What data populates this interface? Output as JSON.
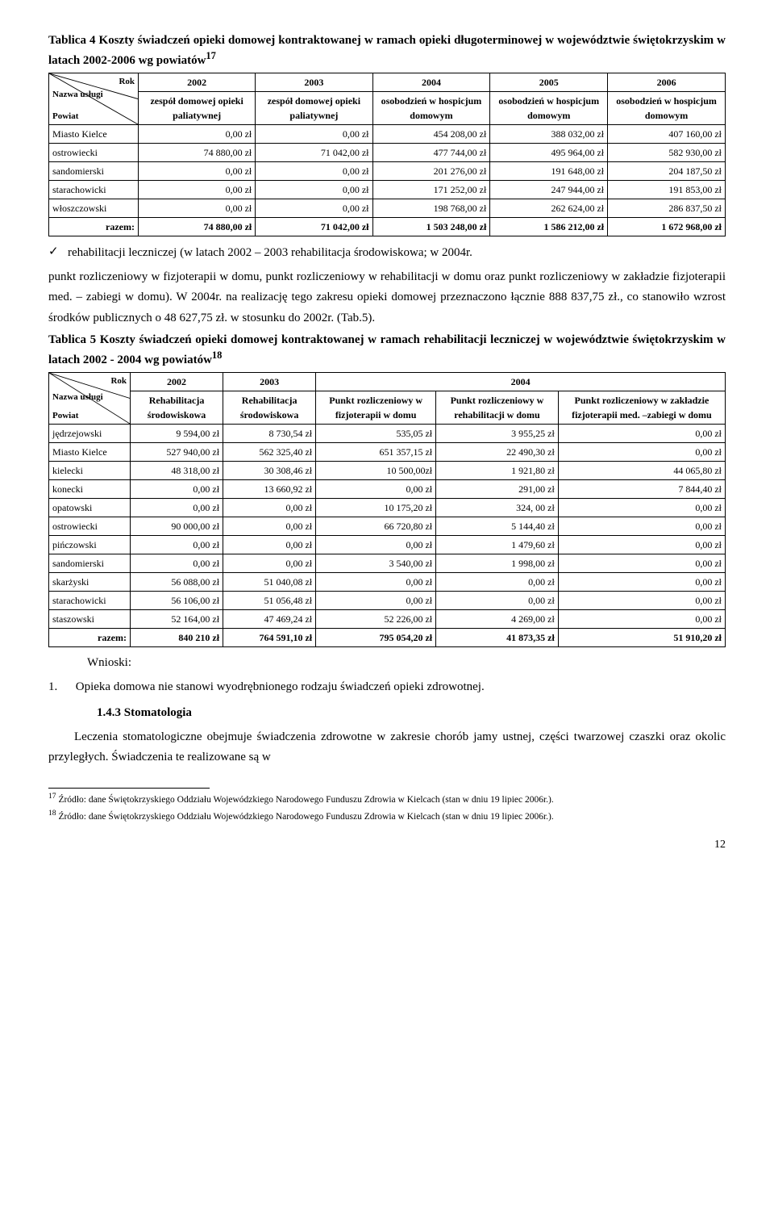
{
  "table4": {
    "title": "Tablica 4 Koszty świadczeń opieki domowej kontraktowanej w ramach opieki długoterminowej w województwie świętokrzyskim w latach 2002-2006 wg powiatów",
    "sup": "17",
    "diag": {
      "tr": "Rok",
      "mid": "Nazwa usługi",
      "bl": "Powiat"
    },
    "years": [
      "2002",
      "2003",
      "2004",
      "2005",
      "2006"
    ],
    "col_headers": [
      "zespół domowej opieki paliatywnej",
      "zespół domowej opieki paliatywnej",
      "osobodzień w hospicjum domowym",
      "osobodzień w hospicjum domowym",
      "osobodzień w hospicjum domowym"
    ],
    "rows": [
      {
        "p": "Miasto Kielce",
        "v": [
          "0,00 zł",
          "0,00 zł",
          "454 208,00 zł",
          "388 032,00 zł",
          "407 160,00 zł"
        ]
      },
      {
        "p": "ostrowiecki",
        "v": [
          "74 880,00 zł",
          "71 042,00 zł",
          "477 744,00 zł",
          "495 964,00 zł",
          "582 930,00 zł"
        ]
      },
      {
        "p": "sandomierski",
        "v": [
          "0,00 zł",
          "0,00 zł",
          "201 276,00 zł",
          "191 648,00 zł",
          "204 187,50 zł"
        ]
      },
      {
        "p": "starachowicki",
        "v": [
          "0,00 zł",
          "0,00 zł",
          "171 252,00 zł",
          "247 944,00 zł",
          "191 853,00 zł"
        ]
      },
      {
        "p": "włoszczowski",
        "v": [
          "0,00 zł",
          "0,00 zł",
          "198 768,00 zł",
          "262 624,00 zł",
          "286 837,50 zł"
        ]
      }
    ],
    "total_label": "razem:",
    "total": [
      "74 880,00 zł",
      "71 042,00 zł",
      "1 503 248,00 zł",
      "1 586 212,00 zł",
      "1 672 968,00 zł"
    ]
  },
  "bullet_text": "rehabilitacji leczniczej (w latach 2002 – 2003 rehabilitacja środowiskowa; w 2004r.",
  "para1": "punkt rozliczeniowy w fizjoterapii w domu, punkt rozliczeniowy w rehabilitacji w domu oraz punkt rozliczeniowy w zakładzie fizjoterapii med. – zabiegi w domu). W 2004r. na realizację tego zakresu opieki domowej  przeznaczono łącznie 888 837,75 zł., co stanowiło wzrost środków publicznych o 48 627,75 zł. w stosunku do 2002r. (Tab.5).",
  "table5": {
    "title": "Tablica 5 Koszty świadczeń opieki domowej kontraktowanej w ramach rehabilitacji leczniczej w województwie świętokrzyskim w latach 2002 - 2004 wg powiatów",
    "sup": "18",
    "diag": {
      "tr": "Rok",
      "mid": "Nazwa usługi",
      "bl": "Powiat"
    },
    "years": [
      "2002",
      "2003",
      "2004"
    ],
    "col_headers": [
      "Rehabilitacja środowiskowa",
      "Rehabilitacja środowiskowa",
      "Punkt rozliczeniowy w fizjoterapii w domu",
      "Punkt rozliczeniowy w rehabilitacji w domu",
      "Punkt rozliczeniowy w zakładzie fizjoterapii med. –zabiegi w domu"
    ],
    "rows": [
      {
        "p": "jędrzejowski",
        "v": [
          "9 594,00 zł",
          "8 730,54 zł",
          "535,05 zł",
          "3 955,25 zł",
          "0,00 zł"
        ]
      },
      {
        "p": "Miasto Kielce",
        "v": [
          "527 940,00 zł",
          "562 325,40 zł",
          "651 357,15 zł",
          "22 490,30 zł",
          "0,00 zł"
        ]
      },
      {
        "p": "kielecki",
        "v": [
          "48 318,00 zł",
          "30 308,46 zł",
          "10 500,00zł",
          "1 921,80 zł",
          "44 065,80 zł"
        ]
      },
      {
        "p": "konecki",
        "v": [
          "0,00 zł",
          "13 660,92 zł",
          "0,00 zł",
          "291,00 zł",
          "7 844,40 zł"
        ]
      },
      {
        "p": "opatowski",
        "v": [
          "0,00 zł",
          "0,00 zł",
          "10 175,20 zł",
          "324, 00 zł",
          "0,00 zł"
        ]
      },
      {
        "p": "ostrowiecki",
        "v": [
          "90 000,00 zł",
          "0,00 zł",
          "66 720,80 zł",
          "5 144,40 zł",
          "0,00 zł"
        ]
      },
      {
        "p": "pińczowski",
        "v": [
          "0,00 zł",
          "0,00 zł",
          "0,00 zł",
          "1 479,60 zł",
          "0,00 zł"
        ]
      },
      {
        "p": "sandomierski",
        "v": [
          "0,00 zł",
          "0,00 zł",
          "3 540,00 zł",
          "1 998,00 zł",
          "0,00 zł"
        ]
      },
      {
        "p": "skarżyski",
        "v": [
          "56 088,00 zł",
          "51 040,08 zł",
          "0,00 zł",
          "0,00 zł",
          "0,00 zł"
        ]
      },
      {
        "p": "starachowicki",
        "v": [
          "56 106,00 zł",
          "51 056,48 zł",
          "0,00 zł",
          "0,00 zł",
          "0,00 zł"
        ]
      },
      {
        "p": "staszowski",
        "v": [
          "52 164,00 zł",
          "47 469,24 zł",
          "52 226,00 zł",
          "4 269,00 zł",
          "0,00 zł"
        ]
      }
    ],
    "total_label": "razem:",
    "total": [
      "840 210 zł",
      "764 591,10 zł",
      "795 054,20 zł",
      "41 873,35 zł",
      "51 910,20 zł"
    ]
  },
  "wnioski_label": "Wnioski:",
  "num1_label": "1.",
  "num1_text": "Opieka domowa nie stanowi wyodrębnionego rodzaju świadczeń opieki zdrowotnej.",
  "subhead": "1.4.3 Stomatologia",
  "para2": "Leczenia stomatologiczne obejmuje świadczenia zdrowotne w zakresie chorób jamy ustnej, części twarzowej czaszki oraz okolic przyległych. Świadczenia te realizowane są w",
  "fn17": "Źródło: dane Świętokrzyskiego Oddziału Wojewódzkiego Narodowego Funduszu Zdrowia w Kielcach (stan w dniu 19 lipiec 2006r.).",
  "fn18": "Źródło: dane Świętokrzyskiego Oddziału Wojewódzkiego Narodowego Funduszu Zdrowia w Kielcach (stan w dniu 19 lipiec 2006r.).",
  "pagenum": "12"
}
